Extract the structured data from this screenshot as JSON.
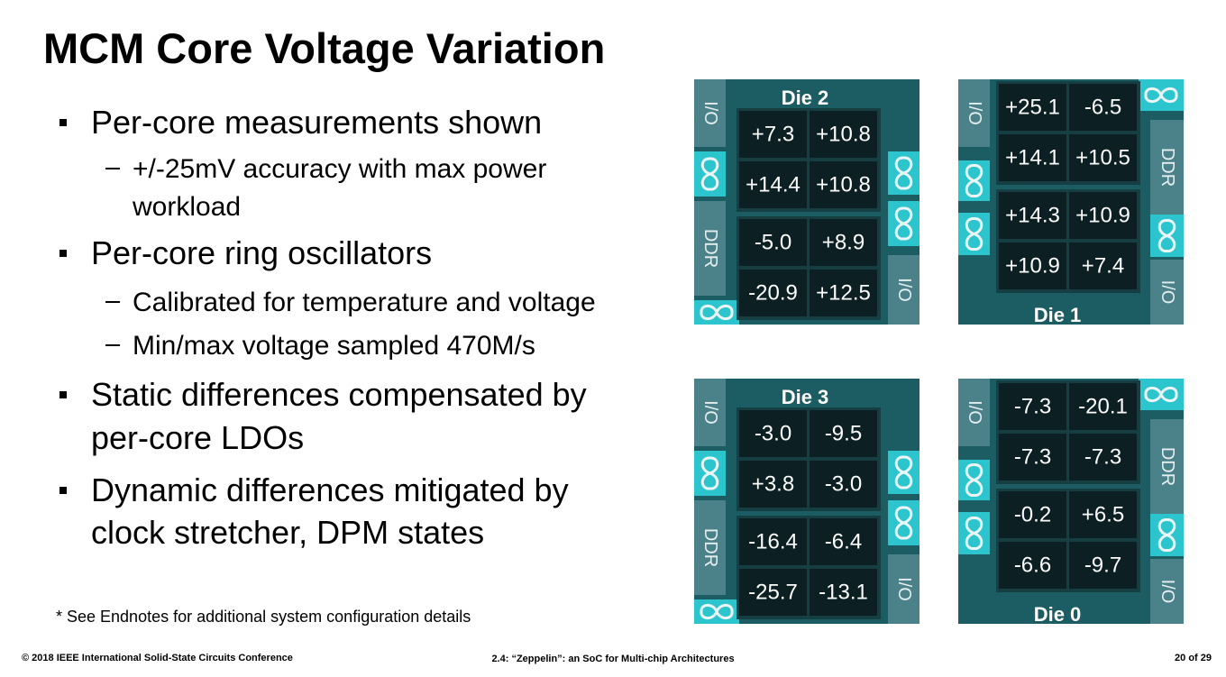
{
  "title": "MCM Core Voltage Variation",
  "bullets": [
    {
      "lines": [
        "Per-core measurements shown"
      ],
      "sub": [
        {
          "lines": [
            "+/-25mV accuracy with max power",
            "workload"
          ]
        }
      ]
    },
    {
      "lines": [
        "Per-core ring oscillators"
      ],
      "sub": [
        {
          "lines": [
            "Calibrated for temperature and voltage"
          ]
        },
        {
          "lines": [
            "Min/max voltage sampled 470M/s"
          ]
        }
      ]
    },
    {
      "lines": [
        "Static differences compensated by",
        "per-core LDOs"
      ]
    },
    {
      "lines": [
        "Dynamic differences mitigated by",
        "clock stretcher, DPM states"
      ]
    }
  ],
  "footnote": "* See Endnotes for additional system configuration details",
  "footer": {
    "left": "© 2018 IEEE International Solid-State Circuits Conference",
    "center": "2.4: “Zeppelin”: an SoC for Multi-chip Architectures",
    "right": "20 of 29"
  },
  "dies": [
    {
      "name": "Die 2",
      "labels": [
        "I/O",
        "DDR",
        "I/O"
      ],
      "cores": [
        [
          "+7.3",
          "+10.8"
        ],
        [
          "+14.4",
          "+10.8"
        ],
        [
          "-5.0",
          "+8.9"
        ],
        [
          "-20.9",
          "+12.5"
        ]
      ]
    },
    {
      "name": "Die 1",
      "labels": [
        "I/O",
        "DDR",
        "I/O"
      ],
      "cores": [
        [
          "+25.1",
          "-6.5"
        ],
        [
          "+14.1",
          "+10.5"
        ],
        [
          "+14.3",
          "+10.9"
        ],
        [
          "+10.9",
          "+7.4"
        ]
      ]
    },
    {
      "name": "Die 3",
      "labels": [
        "I/O",
        "DDR",
        "I/O"
      ],
      "cores": [
        [
          "-3.0",
          "-9.5"
        ],
        [
          "+3.8",
          "-3.0"
        ],
        [
          "-16.4",
          "-6.4"
        ],
        [
          "-25.7",
          "-13.1"
        ]
      ]
    },
    {
      "name": "Die 0",
      "labels": [
        "I/O",
        "DDR",
        "I/O"
      ],
      "cores": [
        [
          "-7.3",
          "-20.1"
        ],
        [
          "-7.3",
          "-7.3"
        ],
        [
          "-0.2",
          "+6.5"
        ],
        [
          "-6.6",
          "-9.7"
        ]
      ]
    }
  ]
}
